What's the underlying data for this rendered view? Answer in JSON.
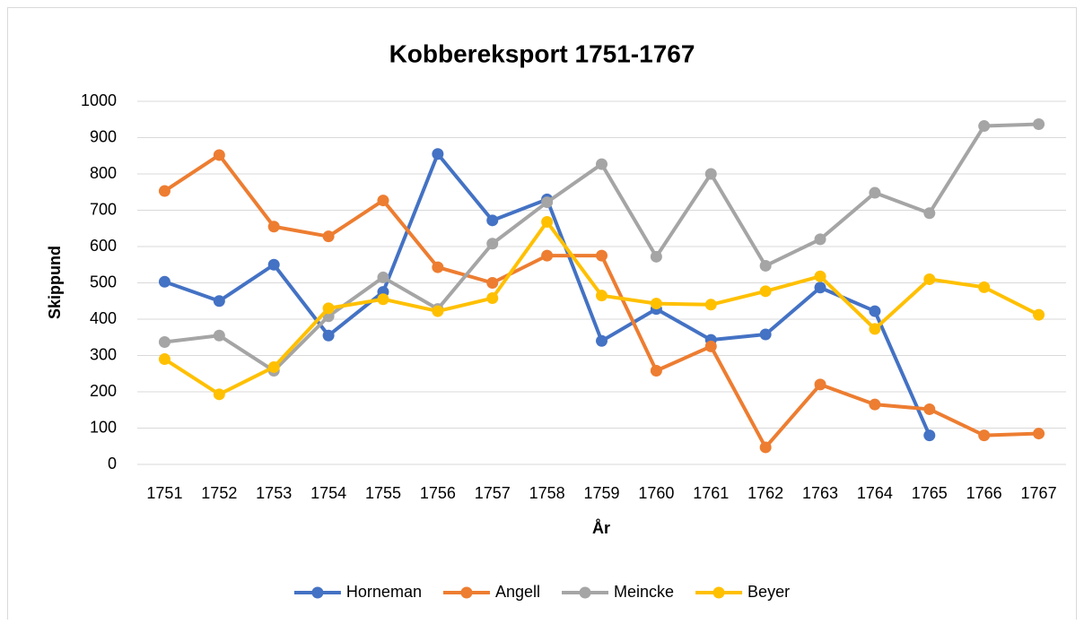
{
  "chart_data": {
    "type": "line",
    "title": "Kobbereksport 1751-1767",
    "x_label": "År",
    "y_label": "Skippund",
    "categories": [
      "1751",
      "1752",
      "1753",
      "1754",
      "1755",
      "1756",
      "1757",
      "1758",
      "1759",
      "1760",
      "1761",
      "1762",
      "1763",
      "1764",
      "1765",
      "1766",
      "1767"
    ],
    "series": [
      {
        "name": "Horneman",
        "color": "#4472c4",
        "values": [
          503,
          450,
          550,
          355,
          475,
          855,
          672,
          730,
          340,
          428,
          343,
          358,
          487,
          422,
          80,
          null,
          null
        ]
      },
      {
        "name": "Angell",
        "color": "#ed7d31",
        "values": [
          753,
          852,
          655,
          628,
          727,
          543,
          500,
          575,
          575,
          258,
          325,
          47,
          220,
          165,
          152,
          80,
          85
        ]
      },
      {
        "name": "Meincke",
        "color": "#a5a5a5",
        "values": [
          337,
          355,
          258,
          408,
          515,
          428,
          608,
          722,
          827,
          572,
          800,
          547,
          620,
          748,
          692,
          932,
          937
        ]
      },
      {
        "name": "Beyer",
        "color": "#ffc000",
        "values": [
          290,
          193,
          268,
          430,
          455,
          422,
          458,
          668,
          465,
          443,
          440,
          477,
          518,
          373,
          510,
          488,
          412
        ]
      }
    ],
    "ylim": [
      0,
      1000
    ],
    "yticks": [
      0,
      100,
      200,
      300,
      400,
      500,
      600,
      700,
      800,
      900,
      1000
    ],
    "grid": true,
    "legend": "bottom"
  }
}
